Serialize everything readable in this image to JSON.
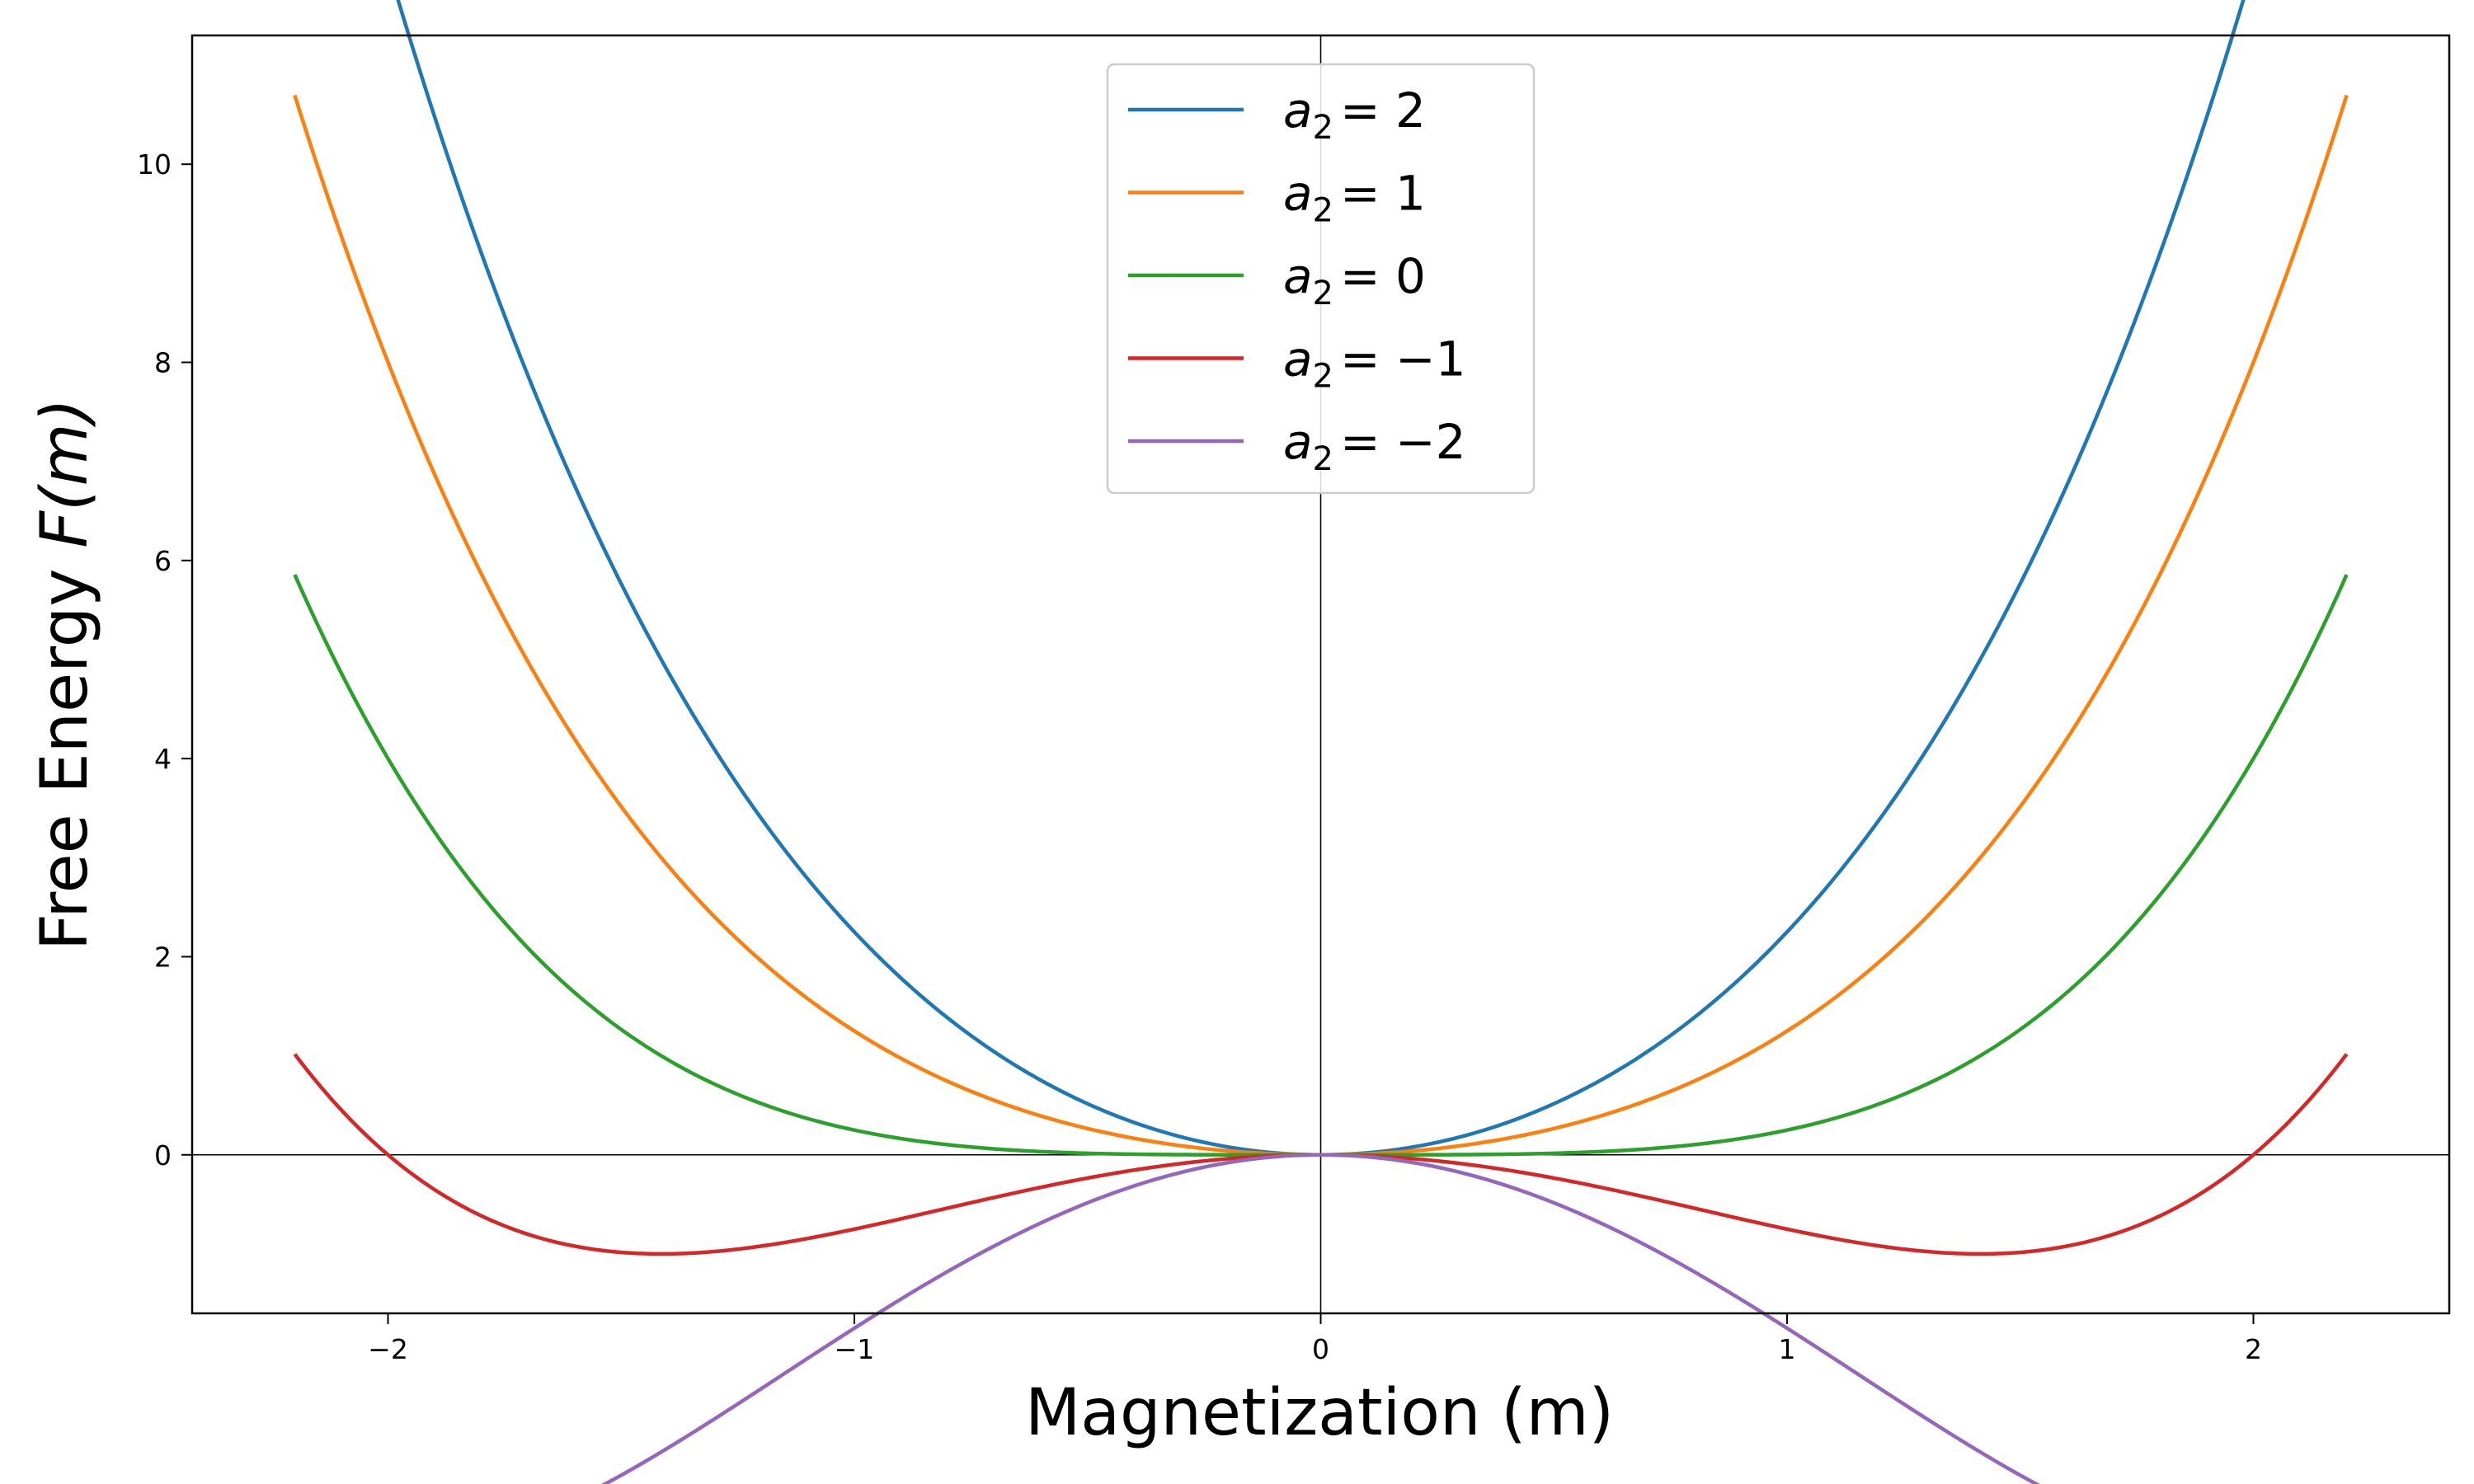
{
  "chart_data": {
    "type": "line",
    "title": "",
    "xlabel": "Magnetization (m)",
    "ylabel": "Free Energy F(m)",
    "xlim": [
      -2.42,
      2.42
    ],
    "ylim": [
      -1.6,
      11.3
    ],
    "x_ticks": [
      -2,
      -1,
      0,
      1,
      2
    ],
    "x_tick_labels": [
      "−2",
      "−1",
      "0",
      "1",
      "2"
    ],
    "y_ticks": [
      0,
      2,
      4,
      6,
      8,
      10
    ],
    "y_tick_labels": [
      "0",
      "2",
      "4",
      "6",
      "8",
      "10"
    ],
    "x_range": [
      -2.2,
      2.2
    ],
    "model": "F(m) = a2*m^2 + m^4/4",
    "legend_position": "upper center",
    "grid": false,
    "reference_lines": [
      "x=0",
      "y=0"
    ],
    "series": [
      {
        "name": "a2 = 2",
        "a2": 2,
        "color": "#1f77b4",
        "label_text": "= 2"
      },
      {
        "name": "a2 = 1",
        "a2": 1,
        "color": "#ff7f0e",
        "label_text": "= 1"
      },
      {
        "name": "a2 = 0",
        "a2": 0,
        "color": "#2ca02c",
        "label_text": "= 0"
      },
      {
        "name": "a2 = -1",
        "a2": -1,
        "color": "#d62728",
        "label_text": "= −1"
      },
      {
        "name": "a2 = -2",
        "a2": -2,
        "color": "#9467bd",
        "label_text": "= −2"
      }
    ]
  }
}
